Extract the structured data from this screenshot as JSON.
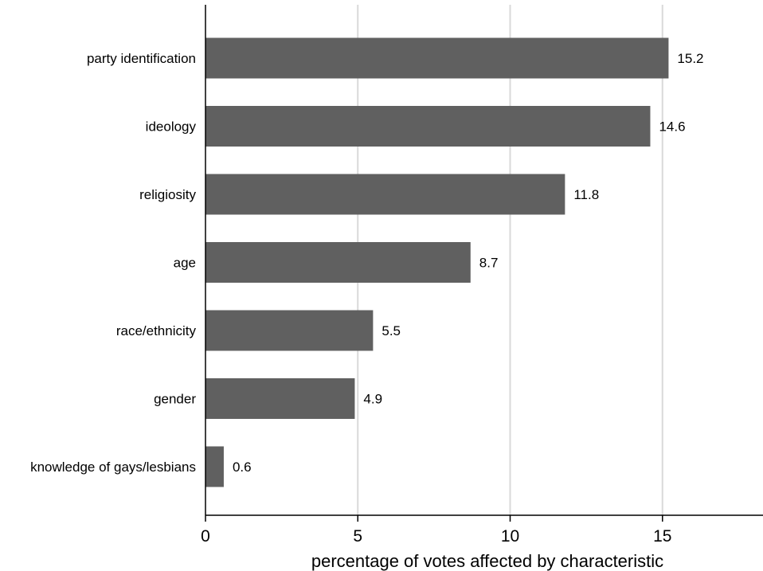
{
  "chart_data": {
    "type": "bar",
    "orientation": "horizontal",
    "categories": [
      "party identification",
      "ideology",
      "religiosity",
      "age",
      "race/ethnicity",
      "gender",
      "knowledge of gays/lesbians"
    ],
    "values": [
      15.2,
      14.6,
      11.8,
      8.7,
      5.5,
      4.9,
      0.6
    ],
    "value_labels": [
      "15.2",
      "14.6",
      "11.8",
      "8.7",
      "5.5",
      "4.9",
      "0.6"
    ],
    "xlabel": "percentage of votes affected by characteristic",
    "xlim": [
      0,
      18.3
    ],
    "xticks": [
      0,
      5,
      10,
      15
    ],
    "xtick_labels": [
      "0",
      "5",
      "10",
      "15"
    ],
    "grid": "vertical",
    "colors": {
      "bar": "#606060",
      "grid": "#d9d9d9",
      "axis": "#000000"
    }
  }
}
